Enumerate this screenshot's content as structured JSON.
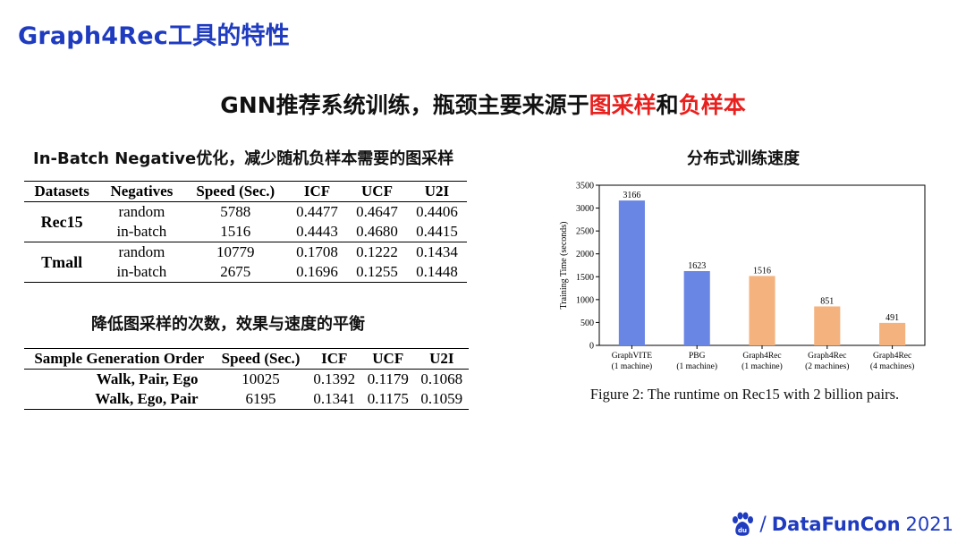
{
  "slide_title": "Graph4Rec工具的特性",
  "headline": {
    "pre": "GNN推荐系统训练，瓶颈主要来源于",
    "hl1": "图采样",
    "mid": "和",
    "hl2": "负样本"
  },
  "table1": {
    "title": "In-Batch Negative优化，减少随机负样本需要的图采样",
    "headers": [
      "Datasets",
      "Negatives",
      "Speed (Sec.)",
      "ICF",
      "UCF",
      "U2I"
    ],
    "groups": [
      {
        "name": "Rec15",
        "rows": [
          [
            "random",
            "5788",
            "0.4477",
            "0.4647",
            "0.4406"
          ],
          [
            "in-batch",
            "1516",
            "0.4443",
            "0.4680",
            "0.4415"
          ]
        ]
      },
      {
        "name": "Tmall",
        "rows": [
          [
            "random",
            "10779",
            "0.1708",
            "0.1222",
            "0.1434"
          ],
          [
            "in-batch",
            "2675",
            "0.1696",
            "0.1255",
            "0.1448"
          ]
        ]
      }
    ]
  },
  "table2": {
    "title": "降低图采样的次数，效果与速度的平衡",
    "headers": [
      "Sample Generation Order",
      "Speed (Sec.)",
      "ICF",
      "UCF",
      "U2I"
    ],
    "rows": [
      [
        "Walk, Pair, Ego",
        "10025",
        "0.1392",
        "0.1179",
        "0.1068"
      ],
      [
        "Walk, Ego, Pair",
        "6195",
        "0.1341",
        "0.1175",
        "0.1059"
      ]
    ]
  },
  "chart_section_title": "分布式训练速度",
  "chart_data": {
    "type": "bar",
    "title": "分布式训练速度",
    "xlabel": "",
    "ylabel": "Training Time (seconds)",
    "ylim": [
      0,
      3500
    ],
    "yticks": [
      0,
      500,
      1000,
      1500,
      2000,
      2500,
      3000,
      3500
    ],
    "categories": [
      "GraphVITE (1 machine)",
      "PBG (1 machine)",
      "Graph4Rec (1 machine)",
      "Graph4Rec (2 machines)",
      "Graph4Rec (4 machines)"
    ],
    "category_lines": [
      [
        "GraphVITE",
        "(1 machine)"
      ],
      [
        "PBG",
        "(1 machine)"
      ],
      [
        "Graph4Rec",
        "(1 machine)"
      ],
      [
        "Graph4Rec",
        "(2 machines)"
      ],
      [
        "Graph4Rec",
        "(4 machines)"
      ]
    ],
    "values": [
      3166,
      1623,
      1516,
      851,
      491
    ],
    "value_labels": [
      "3166",
      "1623",
      "1516",
      "851",
      "491"
    ],
    "bar_colors": [
      "#6a86e4",
      "#6a86e4",
      "#f4b27f",
      "#f4b27f",
      "#f4b27f"
    ],
    "caption": "Figure 2: The runtime on Rec15 with 2 billion pairs."
  },
  "footer": {
    "slash": "/",
    "brand": "DataFunCon",
    "year": "2021",
    "logo_text": "du"
  },
  "colors": {
    "title_blue": "#1f3bbf",
    "highlight_red": "#e8201e"
  }
}
